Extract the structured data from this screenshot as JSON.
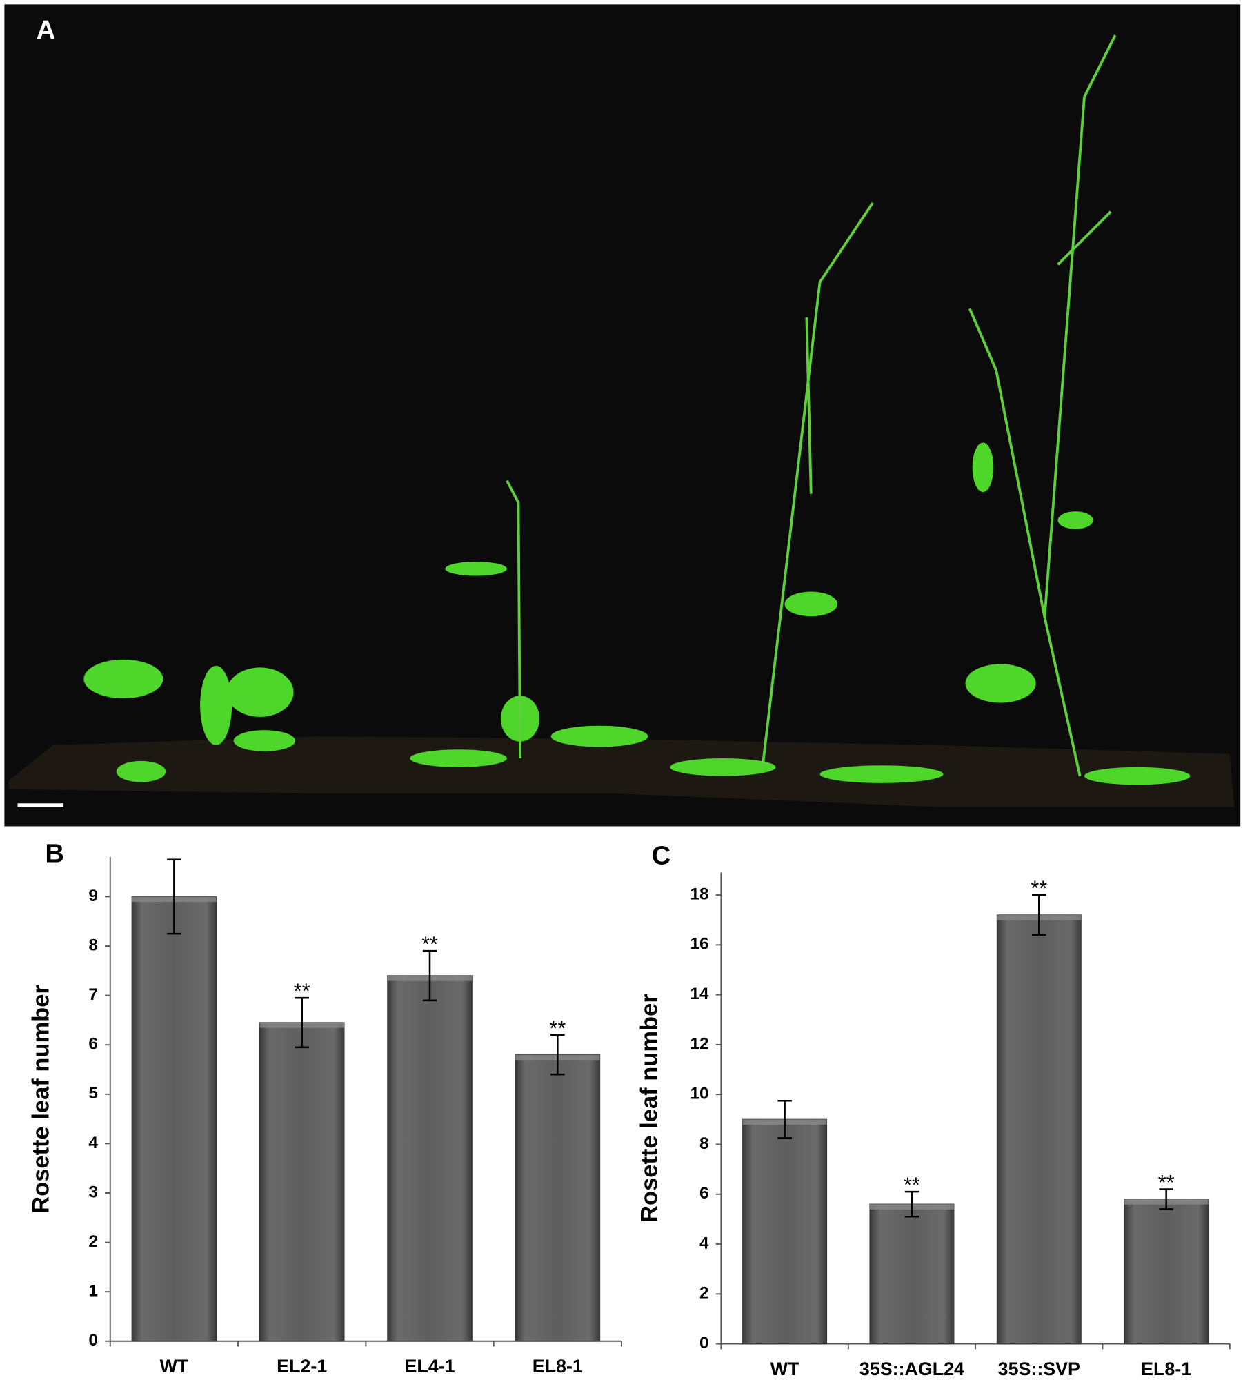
{
  "photo": {
    "label": "A"
  },
  "chart_data": [
    {
      "type": "bar",
      "panel_label": "B",
      "y_label": "Rosette leaf number",
      "categories": [
        "WT",
        "EL2-1",
        "EL4-1",
        "EL8-1"
      ],
      "values": [
        9.0,
        6.45,
        7.4,
        5.8
      ],
      "errors": [
        0.75,
        0.5,
        0.5,
        0.4
      ],
      "significance": [
        null,
        "**",
        "**",
        "**"
      ],
      "color": "#5a5a5a",
      "ylim": [
        0,
        9.8
      ],
      "yticks": [
        0,
        1,
        2,
        3,
        4,
        5,
        6,
        7,
        8,
        9
      ]
    },
    {
      "type": "bar",
      "panel_label": "C",
      "y_label": "Rosette leaf number",
      "categories": [
        "WT",
        "35S::AGL24",
        "35S::SVP",
        "EL8-1"
      ],
      "values": [
        9.0,
        5.6,
        17.2,
        5.8
      ],
      "errors": [
        0.75,
        0.5,
        0.8,
        0.4
      ],
      "significance": [
        null,
        "**",
        "**",
        "**"
      ],
      "color": "#5a5a5a",
      "ylim": [
        0,
        18.9
      ],
      "yticks": [
        0,
        2,
        4,
        6,
        8,
        10,
        12,
        14,
        16,
        18
      ]
    }
  ]
}
